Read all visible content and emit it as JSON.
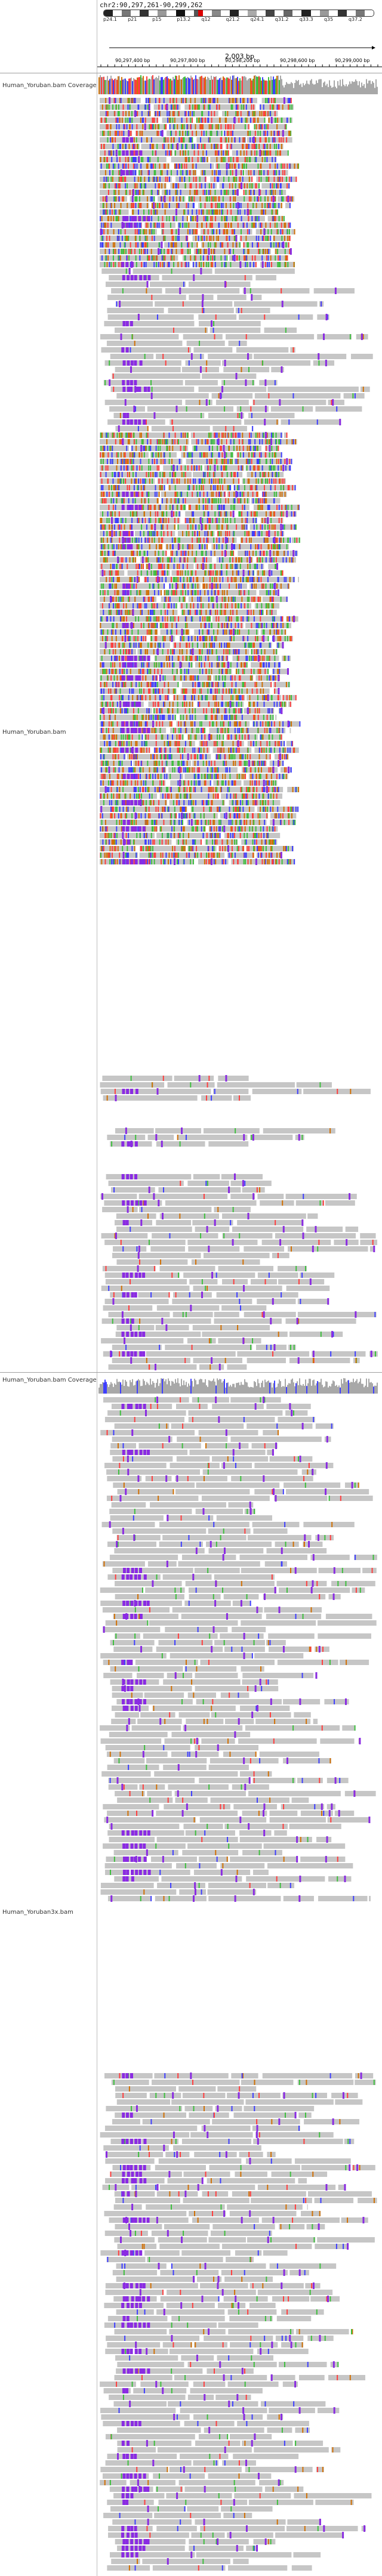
{
  "header": {
    "locus": "chr2:90,297,261-90,299,262",
    "scale_label": "2,003 bp",
    "ideogram_bands": [
      "p24.1",
      "p21",
      "p15",
      "p13.2",
      "q12",
      "q21.2",
      "q24.1",
      "q31.2",
      "q33.3",
      "q35",
      "q37.2"
    ],
    "position_ticks": [
      "90,297,400 bp",
      "90,297,800 bp",
      "90,298,200 bp",
      "90,298,600 bp",
      "90,299,000 bp"
    ]
  },
  "tracks": [
    {
      "name": "Human_Yoruban.bam Coverage"
    },
    {
      "name": "Human_Yoruban.bam"
    },
    {
      "name": "Human_Yoruban.bam Coverage"
    },
    {
      "name": "Human_Yoruban3x.bam"
    }
  ],
  "colors": {
    "read": "#c6c6c6",
    "mismatch_a": "#3fbf3f",
    "mismatch_c": "#3f3fff",
    "mismatch_g": "#d17105",
    "mismatch_t": "#ff3f3f",
    "insertion": "#8a2be2",
    "coverage": "#a8a8a8"
  }
}
